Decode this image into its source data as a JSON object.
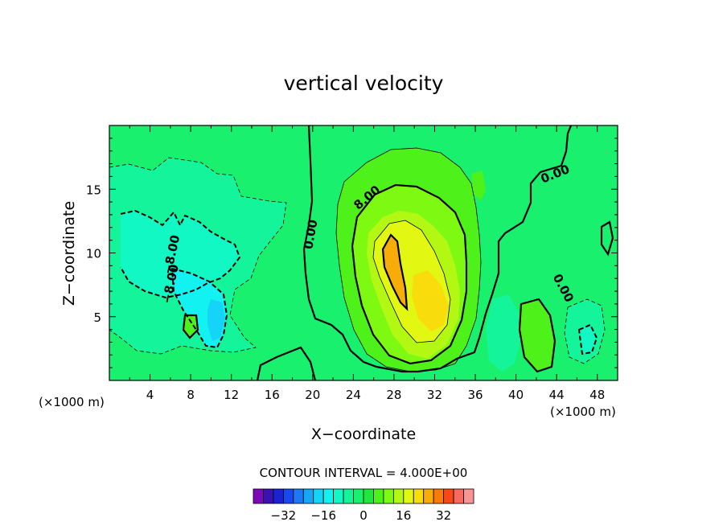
{
  "chart_data": {
    "type": "contour",
    "title": "vertical velocity",
    "xlabel": "X−coordinate",
    "ylabel": "Z−coordinate",
    "x_unit_left": "(×1000 m)",
    "x_unit_right": "(×1000 m)",
    "xlim": [
      0,
      50
    ],
    "ylim": [
      0,
      20
    ],
    "x_ticks": [
      "4",
      "8",
      "12",
      "16",
      "20",
      "24",
      "28",
      "32",
      "36",
      "40",
      "44",
      "48"
    ],
    "x_tick_values": [
      4,
      8,
      12,
      16,
      20,
      24,
      28,
      32,
      36,
      40,
      44,
      48
    ],
    "y_ticks": [
      "5",
      "10",
      "15"
    ],
    "y_tick_values": [
      5,
      10,
      15
    ],
    "contour_interval_text": "CONTOUR INTERVAL = 4.000E+00",
    "contour_interval": 4,
    "contour_labels": [
      {
        "text": "0.00",
        "x": 20.2,
        "y": 11.4
      },
      {
        "text": "8.00",
        "x": 25.6,
        "y": 14.1
      },
      {
        "text": "−8.00",
        "x": 6.5,
        "y": 9.8
      },
      {
        "text": "−8.00",
        "x": 6.4,
        "y": 7.5
      },
      {
        "text": "0.00",
        "x": 44.0,
        "y": 15.9
      },
      {
        "text": "0.00",
        "x": 44.3,
        "y": 7.1
      }
    ],
    "features": [
      {
        "name": "updraft-core",
        "x": 28.0,
        "z": 9.5,
        "max_value": 28
      },
      {
        "name": "downdraft-left",
        "x": 10.5,
        "z": 5.0,
        "min_value": -16
      }
    ],
    "colorbar": {
      "colors": [
        "#7a0ab8",
        "#3a12b0",
        "#1a22d4",
        "#1848f0",
        "#1c78f4",
        "#16a6f6",
        "#14d4f8",
        "#12f2f0",
        "#12f8c4",
        "#14f49a",
        "#18f06e",
        "#1ee83c",
        "#4ef21a",
        "#7efa12",
        "#b2f812",
        "#e2f812",
        "#f8dc0c",
        "#f8ac08",
        "#f87a08",
        "#f84818",
        "#f86a60",
        "#f89494"
      ],
      "tick_labels": [
        "−32",
        "−16",
        "0",
        "16",
        "32"
      ],
      "tick_values": [
        -32,
        -16,
        0,
        16,
        32
      ],
      "range": [
        -44,
        44
      ]
    },
    "background_color": "#18f06e"
  }
}
